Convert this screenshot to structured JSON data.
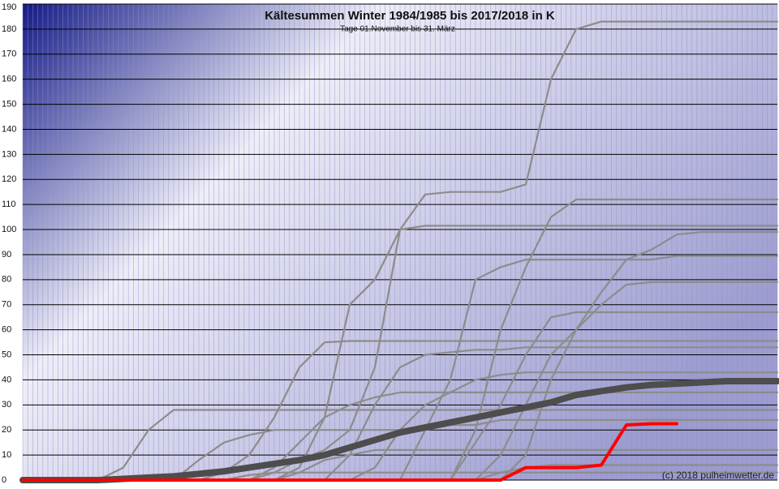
{
  "chart_data": {
    "type": "line",
    "title": "Kältesummen Winter 1984/1985 bis 2017/2018 in K",
    "subtitle": "Tage 01.November bis 31. März",
    "annotation": "(c) 2018 pulheimwetter.de",
    "ylim": [
      0,
      190
    ],
    "yticks": [
      0,
      10,
      20,
      30,
      40,
      50,
      60,
      70,
      80,
      90,
      100,
      110,
      120,
      130,
      140,
      150,
      160,
      170,
      180,
      190
    ],
    "grid": true,
    "series": [
      {
        "color": "#8c8c8c",
        "values": [
          0,
          0,
          0,
          0,
          0,
          0,
          0,
          0,
          0,
          0,
          3,
          8,
          12,
          20,
          45,
          100,
          114,
          115,
          115,
          115,
          118,
          160,
          180,
          183,
          183,
          183,
          183,
          183,
          183,
          183,
          183
        ]
      },
      {
        "color": "#8c8c8c",
        "values": [
          0,
          0,
          0,
          0,
          0,
          0,
          0,
          0,
          0,
          0,
          0,
          0,
          0,
          0,
          0,
          0,
          0,
          0,
          20,
          60,
          85,
          105,
          112,
          112,
          112,
          112,
          112,
          112,
          112,
          112,
          112
        ]
      },
      {
        "color": "#8c8c8c",
        "values": [
          0,
          0,
          0,
          0,
          0,
          0,
          0,
          0,
          0,
          0,
          0,
          5,
          25,
          70,
          80,
          100,
          101.5,
          101.5,
          101.5,
          101.5,
          101.5,
          101.5,
          101.5,
          101.5,
          101.5,
          101.5,
          101.5,
          101.5,
          101.5,
          101.5,
          101.5
        ]
      },
      {
        "color": "#8c8c8c",
        "values": [
          0,
          0,
          0,
          0,
          0,
          0,
          0,
          0,
          0,
          0,
          0,
          0,
          0,
          0,
          0,
          0,
          0,
          0,
          0,
          0,
          10,
          40,
          60,
          75,
          88,
          92,
          98,
          99,
          99,
          99,
          99
        ]
      },
      {
        "color": "#8c8c8c",
        "values": [
          0,
          0,
          0,
          0,
          0,
          0,
          0,
          0,
          0,
          0,
          0,
          0,
          0,
          0,
          0,
          0,
          20,
          40,
          80,
          85,
          88,
          88,
          88,
          88,
          88,
          88,
          89.5,
          89.5,
          89.5,
          89.5,
          89.5
        ]
      },
      {
        "color": "#8c8c8c",
        "values": [
          0,
          0,
          0,
          0,
          0,
          0,
          0,
          0,
          0,
          0,
          0,
          0,
          0,
          0,
          0,
          0,
          0,
          0,
          0,
          10,
          30,
          50,
          60,
          70,
          78,
          79,
          79,
          79,
          79,
          79,
          79
        ]
      },
      {
        "color": "#8c8c8c",
        "values": [
          0,
          0,
          0,
          0,
          0,
          0,
          0,
          0,
          3,
          10,
          25,
          45,
          55,
          55.5,
          55.5,
          55.5,
          55.5,
          55.5,
          55.5,
          55.5,
          55.5,
          55.5,
          55.5,
          55.5,
          55.5,
          55.5,
          55.5,
          55.5,
          55.5,
          55.5,
          55.5
        ]
      },
      {
        "color": "#8c8c8c",
        "values": [
          0,
          0,
          0,
          0,
          5,
          20,
          28,
          28,
          28,
          28,
          28,
          28,
          28,
          28,
          28,
          28,
          28,
          28,
          28,
          28,
          28,
          28,
          28,
          28,
          28,
          28,
          28,
          28,
          28,
          28,
          28
        ]
      },
      {
        "color": "#8c8c8c",
        "values": [
          0,
          0,
          0,
          0,
          0,
          0,
          0,
          0,
          0,
          0,
          0,
          0,
          0,
          10,
          30,
          45,
          50,
          51,
          52,
          52,
          53,
          53,
          53,
          53,
          53,
          53,
          53,
          53,
          53,
          53,
          53
        ]
      },
      {
        "color": "#8c8c8c",
        "values": [
          0,
          0,
          0,
          0,
          0,
          0,
          0,
          0,
          0,
          0,
          0,
          0,
          0,
          0,
          5,
          20,
          30,
          35,
          40,
          42,
          43,
          43,
          43,
          43,
          43,
          43,
          43,
          43,
          43,
          43,
          43
        ]
      },
      {
        "color": "#8c8c8c",
        "values": [
          0,
          0,
          0,
          0,
          0,
          0,
          0,
          0,
          0,
          0,
          5,
          15,
          25,
          30,
          33,
          35,
          35,
          35,
          35,
          35,
          35,
          35,
          35,
          35,
          35,
          35,
          35,
          35,
          35,
          35,
          35
        ]
      },
      {
        "color": "#8c8c8c",
        "values": [
          0,
          0,
          0,
          0,
          0,
          0,
          0,
          8,
          15,
          18,
          20,
          20,
          20,
          20,
          20,
          20,
          20,
          22,
          22,
          24,
          24,
          24,
          24,
          24,
          24,
          24,
          24,
          24,
          24,
          24,
          24
        ]
      },
      {
        "color": "#8c8c8c",
        "values": [
          0,
          0,
          0,
          0,
          0,
          0,
          0,
          0,
          0,
          0,
          0,
          3,
          8,
          10,
          12,
          12,
          12,
          12,
          12,
          12,
          12,
          12,
          12,
          12,
          12,
          12,
          12,
          12,
          12,
          12,
          12
        ]
      },
      {
        "color": "#8c8c8c",
        "values": [
          0,
          0,
          0,
          0,
          0,
          0,
          0,
          0,
          0,
          0,
          0,
          0,
          0,
          0,
          0,
          0,
          0,
          0,
          0,
          3,
          5,
          6,
          6,
          6,
          6,
          6,
          6,
          6,
          6,
          6,
          6
        ]
      },
      {
        "color": "#8c8c8c",
        "values": [
          0,
          0,
          0,
          0,
          0,
          0,
          0,
          0,
          0,
          0,
          0,
          0,
          0,
          0,
          0,
          0,
          0,
          0,
          15,
          30,
          50,
          65,
          67,
          67,
          67,
          67,
          67,
          67,
          67,
          67,
          67
        ]
      },
      {
        "color": "#8c8c8c",
        "values": [
          0,
          0,
          0,
          0,
          0,
          0,
          0,
          0,
          0,
          2,
          3,
          3,
          3,
          3,
          3,
          3,
          3,
          3,
          3,
          3,
          3,
          3,
          3,
          3,
          3,
          3,
          3,
          3,
          3,
          3,
          3
        ]
      },
      {
        "color": "#4d4d4d",
        "values": [
          0,
          0,
          0,
          0,
          0.5,
          1,
          1.5,
          2.5,
          3.5,
          5,
          6.5,
          8,
          10,
          13,
          16,
          19,
          21,
          23,
          25,
          27,
          29,
          31,
          34,
          35.5,
          37,
          38,
          38.5,
          39,
          39.5,
          39.5,
          39.5
        ]
      },
      {
        "color": "#ff0000",
        "values": [
          0,
          0,
          0,
          0,
          0,
          0,
          0,
          0,
          0,
          0,
          0,
          0,
          0,
          0,
          0,
          0,
          0,
          0,
          0,
          0,
          5,
          5,
          5,
          6,
          22,
          22.5,
          22.5,
          null,
          null,
          null,
          null
        ]
      }
    ]
  }
}
